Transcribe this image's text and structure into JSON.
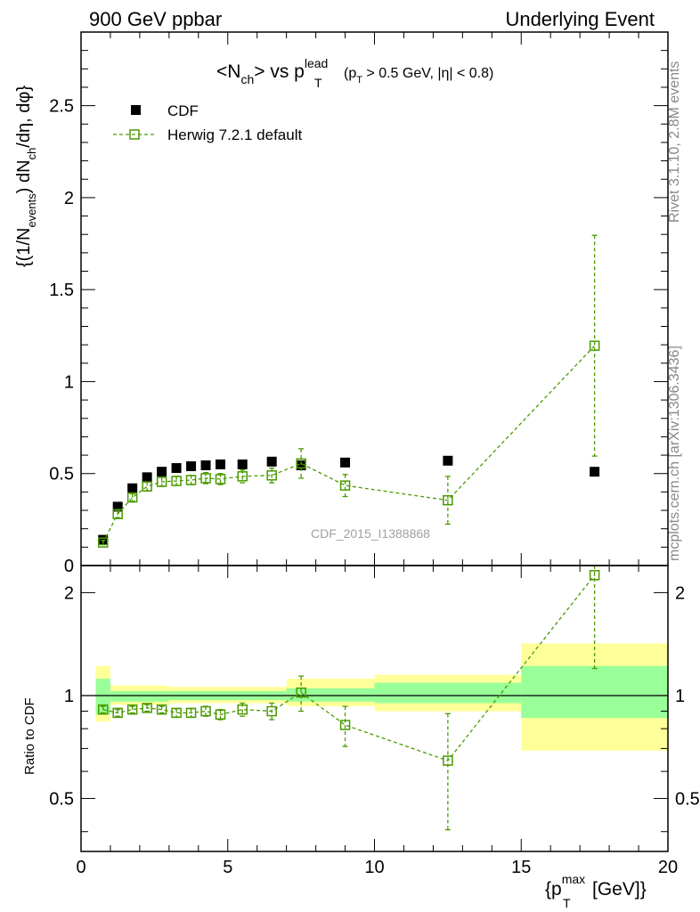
{
  "header": {
    "left_label": "900 GeV ppbar",
    "right_label": "Underlying Event"
  },
  "side_labels": {
    "rivet": "Rivet 3.1.10,  2.8M events",
    "mcplots": "mcplots.cern.ch [arXiv:1306.3436]"
  },
  "watermark": "CDF_2015_I1388868",
  "title": {
    "main": "<N",
    "main_sub": "ch",
    "vs": "> vs p",
    "p_sup": "lead",
    "p_sub": "T",
    "cuts_open": "(p",
    "cuts_sub": "T",
    "cuts_rest": " > 0.5 GeV, |η| < 0.8)"
  },
  "legend": {
    "cdf_label": "CDF",
    "mc_label": "Herwig 7.2.1 default"
  },
  "axes": {
    "ylabel_main": "{(1/N",
    "ylabel_main_sub1": "events",
    "ylabel_main_mid": ") dN",
    "ylabel_main_sub2": "ch",
    "ylabel_main_end": "/dη, dφ}",
    "ylabel_ratio": "Ratio to CDF",
    "xlabel_open": "{p",
    "xlabel_sup": "max",
    "xlabel_sub": "T",
    "xlabel_close": " [GeV]}"
  },
  "colors": {
    "data": "#000000",
    "mc": "#4a9a00",
    "band_inner": "#99ff99",
    "band_outer": "#ffff99"
  },
  "chart_data": [
    {
      "type": "scatter",
      "panel": "main",
      "xlim": [
        0,
        20
      ],
      "ylim": [
        0,
        2.9
      ],
      "x_ticks": [
        0,
        5,
        10,
        15,
        20
      ],
      "y_ticks": [
        0,
        0.5,
        1,
        1.5,
        2,
        2.5
      ],
      "y_tick_labels": [
        "0",
        "0.5",
        "1",
        "1.5",
        "2",
        "2.5"
      ],
      "series": [
        {
          "name": "CDF",
          "x": [
            0.75,
            1.25,
            1.75,
            2.25,
            2.75,
            3.25,
            3.75,
            4.25,
            4.75,
            5.5,
            6.5,
            7.5,
            9.0,
            12.5,
            17.5
          ],
          "values": [
            0.14,
            0.32,
            0.42,
            0.48,
            0.51,
            0.53,
            0.54,
            0.545,
            0.55,
            0.55,
            0.565,
            0.545,
            0.56,
            0.57,
            0.51
          ]
        },
        {
          "name": "Herwig 7.2.1 default",
          "x": [
            0.75,
            1.25,
            1.75,
            2.25,
            2.75,
            3.25,
            3.75,
            4.25,
            4.75,
            5.5,
            6.5,
            7.5,
            9.0,
            12.5,
            17.5
          ],
          "values": [
            0.125,
            0.28,
            0.37,
            0.43,
            0.455,
            0.46,
            0.465,
            0.475,
            0.47,
            0.485,
            0.49,
            0.555,
            0.435,
            0.355,
            1.195
          ],
          "errors": [
            0.012,
            0.02,
            0.02,
            0.025,
            0.025,
            0.025,
            0.025,
            0.03,
            0.03,
            0.035,
            0.04,
            0.08,
            0.06,
            0.13,
            0.6
          ]
        }
      ]
    },
    {
      "type": "scatter",
      "panel": "ratio",
      "ylabel": "Ratio to CDF",
      "xlim": [
        0,
        20
      ],
      "ylim": [
        0.35,
        2.4
      ],
      "log_y": true,
      "y_ticks": [
        0.5,
        1,
        2
      ],
      "y_tick_labels": [
        "0.5",
        "1",
        "2"
      ],
      "bands": [
        {
          "xlo": 0.5,
          "xhi": 1.0,
          "inner": [
            0.88,
            1.12
          ],
          "outer": [
            0.84,
            1.22
          ]
        },
        {
          "xlo": 1.0,
          "xhi": 3.0,
          "inner": [
            0.96,
            1.03
          ],
          "outer": [
            0.94,
            1.07
          ]
        },
        {
          "xlo": 3.0,
          "xhi": 7.0,
          "inner": [
            0.97,
            1.03
          ],
          "outer": [
            0.95,
            1.06
          ]
        },
        {
          "xlo": 7.0,
          "xhi": 10.0,
          "inner": [
            0.96,
            1.05
          ],
          "outer": [
            0.93,
            1.12
          ]
        },
        {
          "xlo": 10.0,
          "xhi": 15.0,
          "inner": [
            0.95,
            1.09
          ],
          "outer": [
            0.9,
            1.15
          ]
        },
        {
          "xlo": 15.0,
          "xhi": 20.0,
          "inner": [
            0.86,
            1.22
          ],
          "outer": [
            0.69,
            1.42
          ]
        }
      ],
      "series": [
        {
          "name": "Herwig 7.2.1 default",
          "x": [
            0.75,
            1.25,
            1.75,
            2.25,
            2.75,
            3.25,
            3.75,
            4.25,
            4.75,
            5.5,
            6.5,
            7.5,
            9.0,
            12.5,
            17.5
          ],
          "values": [
            0.91,
            0.89,
            0.91,
            0.92,
            0.91,
            0.89,
            0.89,
            0.9,
            0.88,
            0.91,
            0.9,
            1.02,
            0.82,
            0.645,
            2.25
          ],
          "errors": [
            0.02,
            0.02,
            0.02,
            0.02,
            0.02,
            0.025,
            0.025,
            0.03,
            0.03,
            0.04,
            0.05,
            0.12,
            0.11,
            0.24,
            1.05
          ]
        }
      ]
    }
  ]
}
